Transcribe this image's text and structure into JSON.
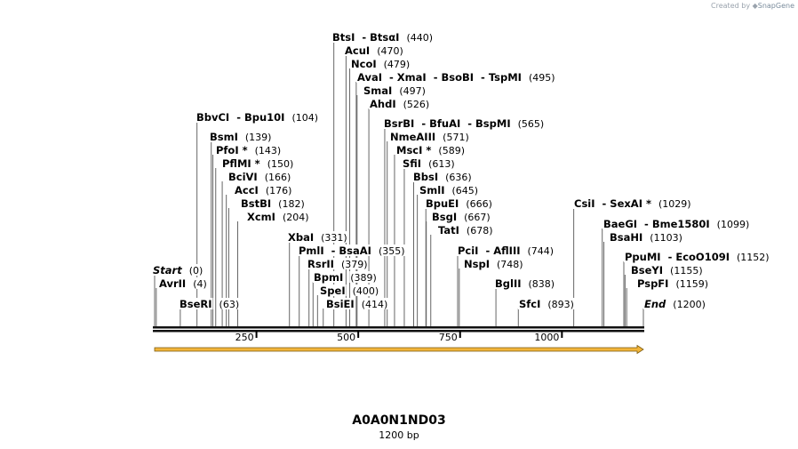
{
  "watermark": {
    "prefix": "Created by",
    "brand": "SnapGene",
    "icon": "snapgene-logo-icon"
  },
  "sequence": {
    "name": "A0A0N1ND03",
    "length_label": "1200 bp",
    "length": 1200
  },
  "ruler": {
    "ticks": [
      250,
      500,
      750,
      1000
    ]
  },
  "feature": {
    "type": "arrow",
    "start": 1,
    "end": 1200,
    "color": "#f2b53a",
    "border": "#7a5a10"
  },
  "sites": [
    {
      "name": "Start",
      "pos": "(0)",
      "bp": 0,
      "italic": true
    },
    {
      "name": "AvrII",
      "pos": "(4)",
      "bp": 4
    },
    {
      "name": "BseRI",
      "pos": "(63)",
      "bp": 63
    },
    {
      "name": "BbvCI  - Bpu10I",
      "pos": "(104)",
      "bp": 104
    },
    {
      "name": "BsmI",
      "pos": "(139)",
      "bp": 139
    },
    {
      "name": "PfoI *",
      "pos": "(143)",
      "bp": 143
    },
    {
      "name": "PflMI *",
      "pos": "(150)",
      "bp": 150
    },
    {
      "name": "BciVI",
      "pos": "(166)",
      "bp": 166
    },
    {
      "name": "AccI",
      "pos": "(176)",
      "bp": 176
    },
    {
      "name": "BstBI",
      "pos": "(182)",
      "bp": 182
    },
    {
      "name": "XcmI",
      "pos": "(204)",
      "bp": 204
    },
    {
      "name": "XbaI",
      "pos": "(331)",
      "bp": 331
    },
    {
      "name": "PmlI  - BsaAI",
      "pos": "(355)",
      "bp": 355
    },
    {
      "name": "RsrII",
      "pos": "(379)",
      "bp": 379
    },
    {
      "name": "BpmI",
      "pos": "(389)",
      "bp": 389
    },
    {
      "name": "SpeI",
      "pos": "(400)",
      "bp": 400
    },
    {
      "name": "BsiEI",
      "pos": "(414)",
      "bp": 414
    },
    {
      "name": "BtsI  - BtsαI",
      "pos": "(440)",
      "bp": 440
    },
    {
      "name": "AcuI",
      "pos": "(470)",
      "bp": 470
    },
    {
      "name": "NcoI",
      "pos": "(479)",
      "bp": 479
    },
    {
      "name": "AvaI  - XmaI  - BsoBI  - TspMI",
      "pos": "(495)",
      "bp": 495
    },
    {
      "name": "SmaI",
      "pos": "(497)",
      "bp": 497
    },
    {
      "name": "AhdI",
      "pos": "(526)",
      "bp": 526
    },
    {
      "name": "BsrBI  - BfuAI  - BspMI",
      "pos": "(565)",
      "bp": 565
    },
    {
      "name": "NmeAIII",
      "pos": "(571)",
      "bp": 571
    },
    {
      "name": "MscI *",
      "pos": "(589)",
      "bp": 589
    },
    {
      "name": "SfiI",
      "pos": "(613)",
      "bp": 613
    },
    {
      "name": "BbsI",
      "pos": "(636)",
      "bp": 636
    },
    {
      "name": "SmlI",
      "pos": "(645)",
      "bp": 645
    },
    {
      "name": "BpuEI",
      "pos": "(666)",
      "bp": 666
    },
    {
      "name": "BsgI",
      "pos": "(667)",
      "bp": 667
    },
    {
      "name": "TatI",
      "pos": "(678)",
      "bp": 678
    },
    {
      "name": "PciI  - AflIII",
      "pos": "(744)",
      "bp": 744
    },
    {
      "name": "NspI",
      "pos": "(748)",
      "bp": 748
    },
    {
      "name": "BglII",
      "pos": "(838)",
      "bp": 838
    },
    {
      "name": "SfcI",
      "pos": "(893)",
      "bp": 893
    },
    {
      "name": "CsiI  - SexAI *",
      "pos": "(1029)",
      "bp": 1029
    },
    {
      "name": "BaeGI  - Bme1580I",
      "pos": "(1099)",
      "bp": 1099
    },
    {
      "name": "BsaHI",
      "pos": "(1103)",
      "bp": 1103
    },
    {
      "name": "PpuMI  - EcoO109I",
      "pos": "(1152)",
      "bp": 1152
    },
    {
      "name": "BseYI",
      "pos": "(1155)",
      "bp": 1155
    },
    {
      "name": "PspFI",
      "pos": "(1159)",
      "bp": 1159
    },
    {
      "name": "End",
      "pos": "(1200)",
      "bp": 1200,
      "italic": true
    }
  ]
}
